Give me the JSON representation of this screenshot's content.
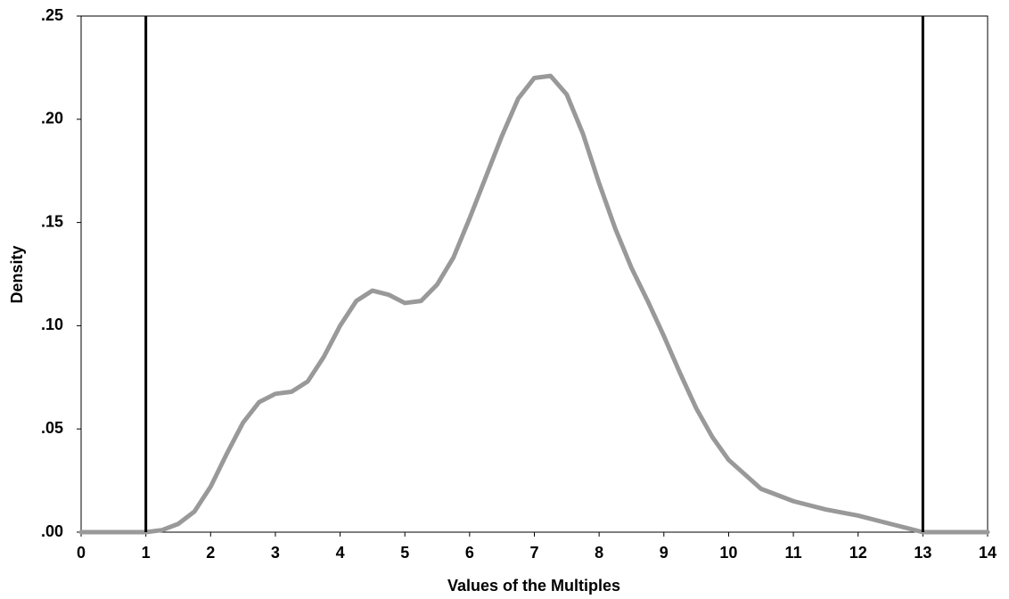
{
  "chart_data": {
    "type": "line",
    "x_label": "Values of the Multiples",
    "y_label": "Density",
    "x": [
      0,
      0.5,
      1,
      1.25,
      1.5,
      1.75,
      2,
      2.25,
      2.5,
      2.75,
      3,
      3.25,
      3.5,
      3.75,
      4,
      4.25,
      4.5,
      4.75,
      5,
      5.25,
      5.5,
      5.75,
      6,
      6.25,
      6.5,
      6.75,
      7,
      7.25,
      7.5,
      7.75,
      8,
      8.25,
      8.5,
      8.75,
      9,
      9.25,
      9.5,
      9.75,
      10,
      10.5,
      11,
      11.5,
      12,
      12.5,
      13,
      13.5,
      14
    ],
    "series": [
      {
        "color": "#999999",
        "values": [
          0,
          0,
          0,
          0.001,
          0.004,
          0.01,
          0.022,
          0.038,
          0.053,
          0.063,
          0.067,
          0.068,
          0.073,
          0.085,
          0.1,
          0.112,
          0.117,
          0.115,
          0.111,
          0.112,
          0.12,
          0.133,
          0.152,
          0.172,
          0.192,
          0.21,
          0.22,
          0.221,
          0.212,
          0.193,
          0.169,
          0.147,
          0.128,
          0.112,
          0.095,
          0.077,
          0.06,
          0.046,
          0.035,
          0.021,
          0.015,
          0.011,
          0.008,
          0.004,
          0,
          0,
          0
        ]
      }
    ],
    "vlines": [
      1,
      13
    ],
    "vline_color": "#000000",
    "xlim": [
      0,
      14
    ],
    "xticks": [
      0,
      1,
      2,
      3,
      4,
      5,
      6,
      7,
      8,
      9,
      10,
      11,
      12,
      13,
      14
    ],
    "ylim": [
      0,
      0.25
    ],
    "yticks": [
      {
        "value": 0,
        "label": ".00"
      },
      {
        "value": 0.05,
        "label": ".05"
      },
      {
        "value": 0.1,
        "label": ".10"
      },
      {
        "value": 0.15,
        "label": ".15"
      },
      {
        "value": 0.2,
        "label": ".20"
      },
      {
        "value": 0.25,
        "label": ".25"
      }
    ]
  }
}
